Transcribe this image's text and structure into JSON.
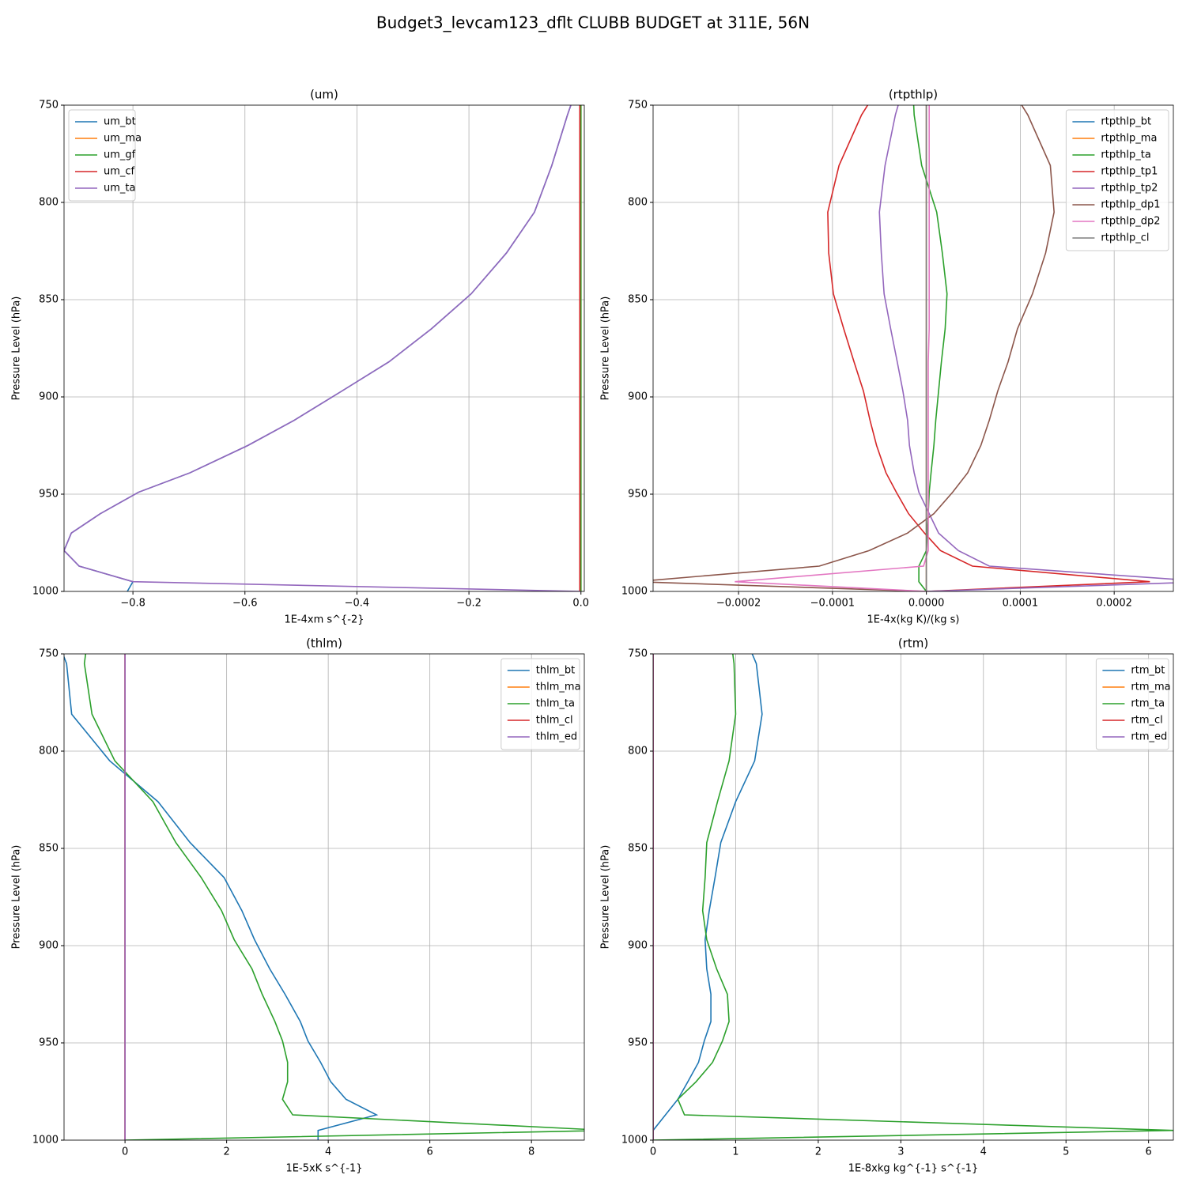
{
  "title": "Budget3_levcam123_dflt CLUBB BUDGET at 311E, 56N",
  "chart_data": [
    {
      "type": "line",
      "title": "(um)",
      "xlabel": "1E-4xm s^{-2}",
      "ylabel": "Pressure Level (hPa)",
      "y": [
        745,
        755,
        781,
        805,
        826,
        847,
        865,
        882,
        897,
        912,
        925,
        939,
        949,
        960,
        970,
        979,
        987,
        995,
        1000
      ],
      "xlim": [
        -0.923,
        0.006
      ],
      "xticks": [
        {
          "value": -0.8,
          "label": "−0.8"
        },
        {
          "value": -0.6,
          "label": "−0.6"
        },
        {
          "value": -0.4,
          "label": "−0.4"
        },
        {
          "value": -0.2,
          "label": "−0.2"
        },
        {
          "value": 0,
          "label": "0.0"
        }
      ],
      "ylim": [
        1000,
        750
      ],
      "yticks": [
        750,
        800,
        850,
        900,
        950,
        1000
      ],
      "grid": true,
      "legend": "upper left",
      "series": [
        {
          "name": "um_bt",
          "color": "#1f77b4",
          "values": [
            -0.012,
            -0.024,
            -0.052,
            -0.083,
            -0.133,
            -0.196,
            -0.267,
            -0.343,
            -0.427,
            -0.512,
            -0.595,
            -0.698,
            -0.79,
            -0.858,
            -0.91,
            -0.923,
            -0.896,
            -0.8,
            -0.81
          ]
        },
        {
          "name": "um_ma",
          "color": "#ff7f0e",
          "values": [
            0,
            0,
            0,
            0,
            0,
            0,
            0,
            0,
            0,
            0,
            0,
            0,
            0,
            0,
            0,
            0,
            0,
            0,
            0
          ]
        },
        {
          "name": "um_gf",
          "color": "#2ca02c",
          "values": [
            0,
            0,
            0,
            0,
            0,
            0,
            0,
            0,
            0,
            0,
            0,
            0,
            0,
            0,
            0,
            0,
            0,
            0,
            0
          ]
        },
        {
          "name": "um_cf",
          "color": "#d62728",
          "values": [
            -0.002,
            -0.002,
            -0.002,
            -0.002,
            -0.002,
            -0.002,
            -0.002,
            -0.002,
            -0.002,
            -0.002,
            -0.002,
            -0.002,
            -0.002,
            -0.002,
            -0.002,
            -0.002,
            -0.002,
            -0.002,
            -0.002
          ]
        },
        {
          "name": "um_ta",
          "color": "#9467bd",
          "values": [
            -0.012,
            -0.024,
            -0.052,
            -0.083,
            -0.133,
            -0.196,
            -0.267,
            -0.343,
            -0.427,
            -0.512,
            -0.595,
            -0.698,
            -0.79,
            -0.858,
            -0.91,
            -0.923,
            -0.896,
            -0.8,
            0
          ]
        }
      ]
    },
    {
      "type": "line",
      "title": "(rtpthlp)",
      "xlabel": "1E-4x(kg K)/(kg s)",
      "ylabel": "Pressure Level (hPa)",
      "y": [
        745,
        755,
        781,
        805,
        826,
        847,
        865,
        882,
        897,
        912,
        925,
        939,
        949,
        960,
        970,
        979,
        987,
        995,
        1000
      ],
      "xlim": [
        -0.000291,
        0.000263
      ],
      "xticks": [
        {
          "value": -0.0002,
          "label": "−0.0002"
        },
        {
          "value": -0.0001,
          "label": "−0.0001"
        },
        {
          "value": 0,
          "label": "0.0000"
        },
        0.0001,
        0.0002
      ],
      "ylim": [
        1000,
        750
      ],
      "yticks": [
        750,
        800,
        850,
        900,
        950,
        1000
      ],
      "grid": true,
      "legend": "upper right",
      "series": [
        {
          "name": "rtpthlp_bt",
          "color": "#1f77b4",
          "values": [
            0,
            0,
            0,
            0,
            0,
            0,
            0,
            0,
            0,
            0,
            0,
            0,
            0,
            0,
            0,
            0,
            0,
            0,
            0
          ]
        },
        {
          "name": "rtpthlp_ma",
          "color": "#ff7f0e",
          "values": [
            0,
            0,
            0,
            0,
            0,
            0,
            0,
            0,
            0,
            0,
            0,
            0,
            0,
            0,
            0,
            0,
            0,
            0,
            0
          ]
        },
        {
          "name": "rtpthlp_ta",
          "color": "#2ca02c",
          "values": [
            -1.4e-05,
            -1.3e-05,
            -5e-06,
            1.1e-05,
            1.7e-05,
            2.2e-05,
            2e-05,
            1.6e-05,
            1.3e-05,
            1e-05,
            8e-06,
            5e-06,
            3e-06,
            2e-06,
            1e-06,
            0,
            -8e-06,
            -8e-06,
            0
          ]
        },
        {
          "name": "rtpthlp_tp1",
          "color": "#d62728",
          "values": [
            -5.6e-05,
            -6.9e-05,
            -9.3e-05,
            -0.000105,
            -0.000104,
            -9.9e-05,
            -8.8e-05,
            -7.7e-05,
            -6.7e-05,
            -6e-05,
            -5.3e-05,
            -4.3e-05,
            -3.2e-05,
            -1.9e-05,
            -2e-06,
            1.5e-05,
            4.9e-05,
            0.000238,
            0
          ]
        },
        {
          "name": "rtpthlp_tp2",
          "color": "#9467bd",
          "values": [
            -2.7e-05,
            -3.3e-05,
            -4.4e-05,
            -5e-05,
            -4.8e-05,
            -4.5e-05,
            -3.8e-05,
            -3.1e-05,
            -2.5e-05,
            -2e-05,
            -1.8e-05,
            -1.3e-05,
            -8e-06,
            3e-06,
            1.3e-05,
            3.4e-05,
            6.7e-05,
            0.0003,
            0
          ]
        },
        {
          "name": "rtpthlp_dp1",
          "color": "#8c564b",
          "values": [
            9.5e-05,
            0.000108,
            0.000132,
            0.000136,
            0.000127,
            0.000113,
            9.7e-05,
            8.7e-05,
            7.6e-05,
            6.7e-05,
            5.8e-05,
            4.4e-05,
            2.8e-05,
            8e-06,
            -2e-05,
            -6.1e-05,
            -0.000114,
            -0.00031,
            0
          ]
        },
        {
          "name": "rtpthlp_dp2",
          "color": "#e377c2",
          "values": [
            3e-06,
            3e-06,
            3e-06,
            3e-06,
            3e-06,
            3e-06,
            3e-06,
            2e-06,
            2e-06,
            2e-06,
            2e-06,
            2e-06,
            2e-06,
            2e-06,
            2e-06,
            2e-06,
            -3e-06,
            -0.000204,
            0
          ]
        },
        {
          "name": "rtpthlp_cl",
          "color": "#7f7f7f",
          "values": [
            0,
            0,
            0,
            0,
            0,
            0,
            0,
            0,
            0,
            0,
            0,
            0,
            0,
            0,
            0,
            0,
            0,
            0,
            0
          ]
        }
      ]
    },
    {
      "type": "line",
      "title": "(thlm)",
      "xlabel": "1E-5xK s^{-1}",
      "ylabel": "Pressure Level (hPa)",
      "y": [
        745,
        755,
        781,
        805,
        826,
        847,
        865,
        882,
        897,
        912,
        925,
        939,
        949,
        960,
        970,
        979,
        987,
        995,
        1000
      ],
      "xlim": [
        -1.2,
        9.04
      ],
      "xticks": [
        0,
        2,
        4,
        6,
        8
      ],
      "ylim": [
        1000,
        750
      ],
      "yticks": [
        750,
        800,
        850,
        900,
        950,
        1000
      ],
      "grid": true,
      "legend": "upper right",
      "series": [
        {
          "name": "thlm_bt",
          "color": "#1f77b4",
          "values": [
            -1.3,
            -1.15,
            -1.05,
            -0.3,
            0.65,
            1.28,
            1.95,
            2.3,
            2.55,
            2.85,
            3.15,
            3.45,
            3.6,
            3.85,
            4.05,
            4.35,
            4.95,
            3.8,
            3.8
          ]
        },
        {
          "name": "thlm_ma",
          "color": "#ff7f0e",
          "values": [
            0,
            0,
            0,
            0,
            0,
            0,
            0,
            0,
            0,
            0,
            0,
            0,
            0,
            0,
            0,
            0,
            0,
            0,
            0
          ]
        },
        {
          "name": "thlm_ta",
          "color": "#2ca02c",
          "values": [
            -0.75,
            -0.8,
            -0.65,
            -0.2,
            0.55,
            1.0,
            1.5,
            1.9,
            2.15,
            2.5,
            2.7,
            2.95,
            3.1,
            3.2,
            3.2,
            3.1,
            3.3,
            9.5,
            0
          ]
        },
        {
          "name": "thlm_cl",
          "color": "#d62728",
          "values": [
            0,
            0,
            0,
            0,
            0,
            0,
            0,
            0,
            0,
            0,
            0,
            0,
            0,
            0,
            0,
            0,
            0,
            0,
            0
          ]
        },
        {
          "name": "thlm_ed",
          "color": "#9467bd",
          "values": [
            0,
            0,
            0,
            0,
            0,
            0,
            0,
            0,
            0,
            0,
            0,
            0,
            0,
            0,
            0,
            0,
            0,
            0,
            0
          ]
        }
      ]
    },
    {
      "type": "line",
      "title": "(rtm)",
      "xlabel": "1E-8xkg kg^{-1} s^{-1}",
      "ylabel": "Pressure Level (hPa)",
      "y": [
        745,
        755,
        781,
        805,
        826,
        847,
        865,
        882,
        897,
        912,
        925,
        939,
        949,
        960,
        970,
        979,
        987,
        995,
        1000
      ],
      "xlim": [
        0,
        6.3
      ],
      "xticks": [
        0,
        1,
        2,
        3,
        4,
        5,
        6
      ],
      "ylim": [
        1000,
        750
      ],
      "yticks": [
        750,
        800,
        850,
        900,
        950,
        1000
      ],
      "grid": true,
      "legend": "upper right",
      "series": [
        {
          "name": "rtm_bt",
          "color": "#1f77b4",
          "values": [
            1.15,
            1.25,
            1.32,
            1.23,
            1.0,
            0.82,
            0.75,
            0.68,
            0.63,
            0.65,
            0.7,
            0.7,
            0.62,
            0.55,
            0.42,
            0.3,
            0.15,
            0,
            0
          ]
        },
        {
          "name": "rtm_ma",
          "color": "#ff7f0e",
          "values": [
            0,
            0,
            0,
            0,
            0,
            0,
            0,
            0,
            0,
            0,
            0,
            0,
            0,
            0,
            0,
            0,
            0,
            0,
            0
          ]
        },
        {
          "name": "rtm_ta",
          "color": "#2ca02c",
          "values": [
            0.95,
            0.98,
            1.0,
            0.92,
            0.78,
            0.65,
            0.63,
            0.6,
            0.65,
            0.77,
            0.9,
            0.92,
            0.84,
            0.72,
            0.52,
            0.3,
            0.38,
            6.3,
            0
          ]
        },
        {
          "name": "rtm_cl",
          "color": "#d62728",
          "values": [
            0,
            0,
            0,
            0,
            0,
            0,
            0,
            0,
            0,
            0,
            0,
            0,
            0,
            0,
            0,
            0,
            0,
            0,
            0
          ]
        },
        {
          "name": "rtm_ed",
          "color": "#9467bd",
          "values": [
            0,
            0,
            0,
            0,
            0,
            0,
            0,
            0,
            0,
            0,
            0,
            0,
            0,
            0,
            0,
            0,
            0,
            0,
            0
          ]
        }
      ]
    }
  ]
}
